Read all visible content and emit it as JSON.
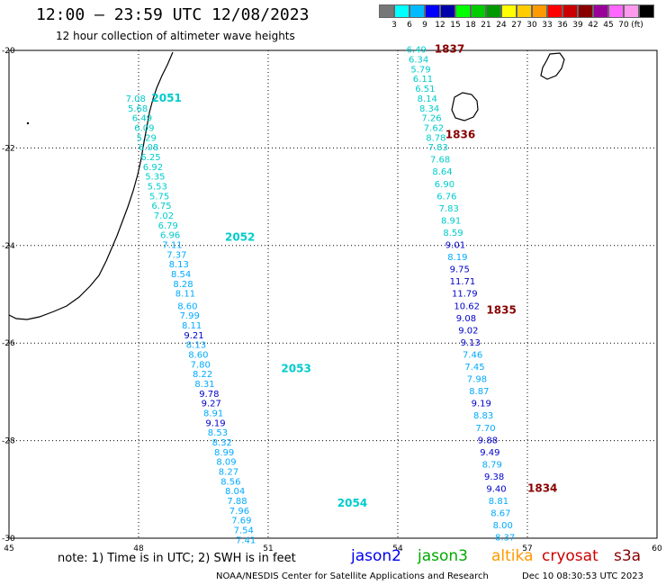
{
  "header": {
    "title": "12:00 – 23:59 UTC 12/08/2023",
    "subtitle": "12 hour collection of altimeter wave heights"
  },
  "legend": {
    "unit": "(ft)",
    "ticks": [
      "3",
      "6",
      "9",
      "12",
      "15",
      "18",
      "21",
      "24",
      "27",
      "30",
      "33",
      "36",
      "39",
      "42",
      "45",
      "70"
    ],
    "colors": [
      "#777777",
      "#00ffff",
      "#00bbff",
      "#0000ff",
      "#0000aa",
      "#00ff00",
      "#00cc00",
      "#009900",
      "#ffff00",
      "#ffcc00",
      "#ff9900",
      "#ff0000",
      "#cc0000",
      "#880000",
      "#990099",
      "#ff66ff",
      "#ff99ee",
      "#000000"
    ]
  },
  "axes": {
    "lon_ticks": [
      "45",
      "48",
      "51",
      "54",
      "57",
      "60"
    ],
    "lat_ticks": [
      "-20",
      "-22",
      "-24",
      "-26",
      "-28",
      "-30"
    ],
    "lon_range": [
      45,
      60
    ],
    "lat_range": [
      -30,
      -20
    ]
  },
  "tracks": {
    "jason3": {
      "color": "#00cccc",
      "times": [
        {
          "label": "2051",
          "lon": 48.3,
          "lat": -21.05
        },
        {
          "label": "2052",
          "lon": 50.0,
          "lat": -23.9
        },
        {
          "label": "2053",
          "lon": 51.3,
          "lat": -26.6
        },
        {
          "label": "2054",
          "lon": 52.6,
          "lat": -29.35
        }
      ],
      "points": [
        {
          "v": "7.08",
          "lon": 47.7,
          "lat": -21.05,
          "c": "#00cccc"
        },
        {
          "v": "5.68",
          "lon": 47.75,
          "lat": -21.25,
          "c": "#00cccc"
        },
        {
          "v": "6.49",
          "lon": 47.85,
          "lat": -21.45,
          "c": "#00cccc"
        },
        {
          "v": "6.09",
          "lon": 47.9,
          "lat": -21.65,
          "c": "#00cccc"
        },
        {
          "v": "5.29",
          "lon": 47.95,
          "lat": -21.85,
          "c": "#00cccc"
        },
        {
          "v": "6.08",
          "lon": 48.0,
          "lat": -22.05,
          "c": "#00cccc"
        },
        {
          "v": "6.25",
          "lon": 48.05,
          "lat": -22.25,
          "c": "#00cccc"
        },
        {
          "v": "6.92",
          "lon": 48.1,
          "lat": -22.45,
          "c": "#00cccc"
        },
        {
          "v": "5.35",
          "lon": 48.15,
          "lat": -22.65,
          "c": "#00cccc"
        },
        {
          "v": "5.53",
          "lon": 48.2,
          "lat": -22.85,
          "c": "#00cccc"
        },
        {
          "v": "5.75",
          "lon": 48.25,
          "lat": -23.05,
          "c": "#00cccc"
        },
        {
          "v": "6.75",
          "lon": 48.3,
          "lat": -23.25,
          "c": "#00cccc"
        },
        {
          "v": "7.02",
          "lon": 48.35,
          "lat": -23.45,
          "c": "#00cccc"
        },
        {
          "v": "6.79",
          "lon": 48.45,
          "lat": -23.65,
          "c": "#00cccc"
        },
        {
          "v": "6.96",
          "lon": 48.5,
          "lat": -23.85,
          "c": "#00cccc"
        },
        {
          "v": "7.11",
          "lon": 48.55,
          "lat": -24.05,
          "c": "#00aaff"
        },
        {
          "v": "7.37",
          "lon": 48.65,
          "lat": -24.25,
          "c": "#00aaff"
        },
        {
          "v": "8.13",
          "lon": 48.7,
          "lat": -24.45,
          "c": "#00aaff"
        },
        {
          "v": "8.54",
          "lon": 48.75,
          "lat": -24.65,
          "c": "#00aaff"
        },
        {
          "v": "8.28",
          "lon": 48.8,
          "lat": -24.85,
          "c": "#00aaff"
        },
        {
          "v": "8.11",
          "lon": 48.85,
          "lat": -25.05,
          "c": "#00aaff"
        },
        {
          "v": "8.60",
          "lon": 48.9,
          "lat": -25.3,
          "c": "#00aaff"
        },
        {
          "v": "7.99",
          "lon": 48.95,
          "lat": -25.5,
          "c": "#00aaff"
        },
        {
          "v": "8.11",
          "lon": 49.0,
          "lat": -25.7,
          "c": "#00aaff"
        },
        {
          "v": "9.21",
          "lon": 49.05,
          "lat": -25.9,
          "c": "#0000cc"
        },
        {
          "v": "8.13",
          "lon": 49.1,
          "lat": -26.1,
          "c": "#00aaff"
        },
        {
          "v": "8.60",
          "lon": 49.15,
          "lat": -26.3,
          "c": "#00aaff"
        },
        {
          "v": "7.80",
          "lon": 49.2,
          "lat": -26.5,
          "c": "#00aaff"
        },
        {
          "v": "8.22",
          "lon": 49.25,
          "lat": -26.7,
          "c": "#00aaff"
        },
        {
          "v": "8.31",
          "lon": 49.3,
          "lat": -26.9,
          "c": "#00aaff"
        },
        {
          "v": "9.78",
          "lon": 49.4,
          "lat": -27.1,
          "c": "#0000cc"
        },
        {
          "v": "9.27",
          "lon": 49.45,
          "lat": -27.3,
          "c": "#0000cc"
        },
        {
          "v": "8.91",
          "lon": 49.5,
          "lat": -27.5,
          "c": "#00aaff"
        },
        {
          "v": "9.19",
          "lon": 49.55,
          "lat": -27.7,
          "c": "#0000cc"
        },
        {
          "v": "8.53",
          "lon": 49.6,
          "lat": -27.9,
          "c": "#00aaff"
        },
        {
          "v": "8.32",
          "lon": 49.7,
          "lat": -28.1,
          "c": "#00aaff"
        },
        {
          "v": "8.99",
          "lon": 49.75,
          "lat": -28.3,
          "c": "#00aaff"
        },
        {
          "v": "8.09",
          "lon": 49.8,
          "lat": -28.5,
          "c": "#00aaff"
        },
        {
          "v": "8.27",
          "lon": 49.85,
          "lat": -28.7,
          "c": "#00aaff"
        },
        {
          "v": "8.56",
          "lon": 49.9,
          "lat": -28.9,
          "c": "#00aaff"
        },
        {
          "v": "8.04",
          "lon": 50.0,
          "lat": -29.1,
          "c": "#00aaff"
        },
        {
          "v": "7.88",
          "lon": 50.05,
          "lat": -29.3,
          "c": "#00aaff"
        },
        {
          "v": "7.96",
          "lon": 50.1,
          "lat": -29.5,
          "c": "#00aaff"
        },
        {
          "v": "7.69",
          "lon": 50.15,
          "lat": -29.7,
          "c": "#00aaff"
        },
        {
          "v": "7.54",
          "lon": 50.2,
          "lat": -29.9,
          "c": "#00aaff"
        },
        {
          "v": "7.41",
          "lon": 50.25,
          "lat": -30.1,
          "c": "#00aaff"
        }
      ]
    },
    "cryosat": {
      "color": "#880000",
      "times": [
        {
          "label": "1837",
          "lon": 54.85,
          "lat": -20.05
        },
        {
          "label": "1836",
          "lon": 55.1,
          "lat": -21.8
        },
        {
          "label": "1835",
          "lon": 56.05,
          "lat": -25.4
        },
        {
          "label": "1834",
          "lon": 57.0,
          "lat": -29.05
        }
      ],
      "points": [
        {
          "v": "6.49",
          "lon": 54.2,
          "lat": -20.05,
          "c": "#00cccc"
        },
        {
          "v": "6.34",
          "lon": 54.25,
          "lat": -20.25,
          "c": "#00cccc"
        },
        {
          "v": "5.79",
          "lon": 54.3,
          "lat": -20.45,
          "c": "#00cccc"
        },
        {
          "v": "6.11",
          "lon": 54.35,
          "lat": -20.65,
          "c": "#00cccc"
        },
        {
          "v": "6.51",
          "lon": 54.4,
          "lat": -20.85,
          "c": "#00cccc"
        },
        {
          "v": "8.14",
          "lon": 54.45,
          "lat": -21.05,
          "c": "#00cccc"
        },
        {
          "v": "8.34",
          "lon": 54.5,
          "lat": -21.25,
          "c": "#00cccc"
        },
        {
          "v": "7.26",
          "lon": 54.55,
          "lat": -21.45,
          "c": "#00cccc"
        },
        {
          "v": "7.62",
          "lon": 54.6,
          "lat": -21.65,
          "c": "#00cccc"
        },
        {
          "v": "8.78",
          "lon": 54.65,
          "lat": -21.85,
          "c": "#00cccc"
        },
        {
          "v": "7.83",
          "lon": 54.7,
          "lat": -22.05,
          "c": "#00cccc"
        },
        {
          "v": "7.68",
          "lon": 54.75,
          "lat": -22.3,
          "c": "#00cccc"
        },
        {
          "v": "8.64",
          "lon": 54.8,
          "lat": -22.55,
          "c": "#00cccc"
        },
        {
          "v": "6.90",
          "lon": 54.85,
          "lat": -22.8,
          "c": "#00cccc"
        },
        {
          "v": "6.76",
          "lon": 54.9,
          "lat": -23.05,
          "c": "#00cccc"
        },
        {
          "v": "7.83",
          "lon": 54.95,
          "lat": -23.3,
          "c": "#00cccc"
        },
        {
          "v": "8.91",
          "lon": 55.0,
          "lat": -23.55,
          "c": "#00cccc"
        },
        {
          "v": "8.59",
          "lon": 55.05,
          "lat": -23.8,
          "c": "#00cccc"
        },
        {
          "v": "9.01",
          "lon": 55.1,
          "lat": -24.05,
          "c": "#0000cc"
        },
        {
          "v": "8.19",
          "lon": 55.15,
          "lat": -24.3,
          "c": "#00aaff"
        },
        {
          "v": "9.75",
          "lon": 55.2,
          "lat": -24.55,
          "c": "#0000cc"
        },
        {
          "v": "11.71",
          "lon": 55.2,
          "lat": -24.8,
          "c": "#0000cc"
        },
        {
          "v": "11.79",
          "lon": 55.25,
          "lat": -25.05,
          "c": "#0000cc"
        },
        {
          "v": "10.62",
          "lon": 55.3,
          "lat": -25.3,
          "c": "#0000cc"
        },
        {
          "v": "9.08",
          "lon": 55.35,
          "lat": -25.55,
          "c": "#0000cc"
        },
        {
          "v": "9.02",
          "lon": 55.4,
          "lat": -25.8,
          "c": "#0000cc"
        },
        {
          "v": "9.13",
          "lon": 55.45,
          "lat": -26.05,
          "c": "#0000cc"
        },
        {
          "v": "7.46",
          "lon": 55.5,
          "lat": -26.3,
          "c": "#00aaff"
        },
        {
          "v": "7.45",
          "lon": 55.55,
          "lat": -26.55,
          "c": "#00aaff"
        },
        {
          "v": "7.98",
          "lon": 55.6,
          "lat": -26.8,
          "c": "#00aaff"
        },
        {
          "v": "8.87",
          "lon": 55.65,
          "lat": -27.05,
          "c": "#00aaff"
        },
        {
          "v": "9.19",
          "lon": 55.7,
          "lat": -27.3,
          "c": "#0000cc"
        },
        {
          "v": "8.83",
          "lon": 55.75,
          "lat": -27.55,
          "c": "#00aaff"
        },
        {
          "v": "7.70",
          "lon": 55.8,
          "lat": -27.8,
          "c": "#00aaff"
        },
        {
          "v": "9.88",
          "lon": 55.85,
          "lat": -28.05,
          "c": "#0000cc"
        },
        {
          "v": "9.49",
          "lon": 55.9,
          "lat": -28.3,
          "c": "#0000cc"
        },
        {
          "v": "8.79",
          "lon": 55.95,
          "lat": -28.55,
          "c": "#00aaff"
        },
        {
          "v": "9.38",
          "lon": 56.0,
          "lat": -28.8,
          "c": "#0000cc"
        },
        {
          "v": "9.40",
          "lon": 56.05,
          "lat": -29.05,
          "c": "#0000cc"
        },
        {
          "v": "8.81",
          "lon": 56.1,
          "lat": -29.3,
          "c": "#00aaff"
        },
        {
          "v": "8.67",
          "lon": 56.15,
          "lat": -29.55,
          "c": "#00aaff"
        },
        {
          "v": "8.00",
          "lon": 56.2,
          "lat": -29.8,
          "c": "#00aaff"
        },
        {
          "v": "8.37",
          "lon": 56.25,
          "lat": -30.05,
          "c": "#00aaff"
        }
      ]
    }
  },
  "footer": {
    "note": "note:  1) Time is in UTC;  2) SWH is in feet",
    "satellites": [
      {
        "name": "jason2",
        "color": "#0000ee"
      },
      {
        "name": "jason3",
        "color": "#00aa00"
      },
      {
        "name": "altika",
        "color": "#ff9900"
      },
      {
        "name": "cryosat",
        "color": "#cc0000"
      },
      {
        "name": "s3a",
        "color": "#880000"
      }
    ],
    "credit": "NOAA/NESDIS Center for Satellite Applications and Research",
    "timestamp": "Dec 10 08:30:53 UTC 2023"
  }
}
